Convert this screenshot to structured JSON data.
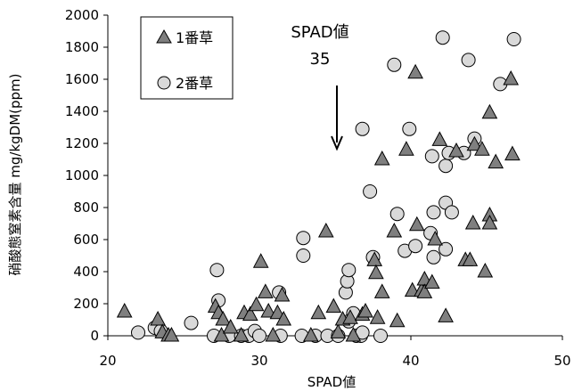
{
  "chart_data": {
    "type": "scatter",
    "xlabel": "SPAD値",
    "ylabel": "硝酸態窒素含量 mg/kgDM(ppm)",
    "xlim": [
      20,
      50
    ],
    "ylim": [
      0,
      2000
    ],
    "x_ticks": [
      "20",
      "30",
      "40",
      "50"
    ],
    "y_ticks": [
      "0",
      "200",
      "400",
      "600",
      "800",
      "1000",
      "1200",
      "1400",
      "1600",
      "1800",
      "2000"
    ],
    "grid": false,
    "legend_position": "top-left",
    "annotation": {
      "line1": "SPAD値",
      "line2": "35",
      "x": 35
    },
    "colors": {
      "series1": "#7f7f7f",
      "series2": "#d9d9d9",
      "stroke": "#000000"
    },
    "series": [
      {
        "name": "1番草",
        "marker": "triangle",
        "points": [
          [
            21.1,
            150
          ],
          [
            23.3,
            100
          ],
          [
            23.6,
            20
          ],
          [
            24.0,
            0
          ],
          [
            24.2,
            0
          ],
          [
            27.1,
            180
          ],
          [
            27.3,
            140
          ],
          [
            27.5,
            0
          ],
          [
            27.6,
            100
          ],
          [
            28.1,
            50
          ],
          [
            28.8,
            0
          ],
          [
            29.0,
            140
          ],
          [
            29.4,
            130
          ],
          [
            29.8,
            190
          ],
          [
            30.1,
            460
          ],
          [
            30.4,
            270
          ],
          [
            30.6,
            150
          ],
          [
            30.9,
            0
          ],
          [
            31.2,
            140
          ],
          [
            31.5,
            250
          ],
          [
            31.6,
            100
          ],
          [
            33.4,
            0
          ],
          [
            33.9,
            140
          ],
          [
            34.4,
            650
          ],
          [
            34.9,
            180
          ],
          [
            35.2,
            20
          ],
          [
            35.5,
            100
          ],
          [
            36.0,
            110
          ],
          [
            36.2,
            0
          ],
          [
            36.8,
            130
          ],
          [
            37.0,
            150
          ],
          [
            37.6,
            470
          ],
          [
            37.7,
            390
          ],
          [
            37.8,
            110
          ],
          [
            38.1,
            1100
          ],
          [
            38.1,
            270
          ],
          [
            38.9,
            650
          ],
          [
            39.1,
            90
          ],
          [
            39.7,
            1160
          ],
          [
            40.1,
            280
          ],
          [
            40.3,
            1640
          ],
          [
            40.4,
            690
          ],
          [
            40.7,
            280
          ],
          [
            40.9,
            350
          ],
          [
            40.9,
            270
          ],
          [
            41.4,
            330
          ],
          [
            41.6,
            600
          ],
          [
            41.9,
            1220
          ],
          [
            42.3,
            120
          ],
          [
            43.0,
            1150
          ],
          [
            43.6,
            470
          ],
          [
            43.9,
            470
          ],
          [
            44.1,
            700
          ],
          [
            44.2,
            1190
          ],
          [
            44.7,
            1160
          ],
          [
            44.9,
            400
          ],
          [
            45.2,
            750
          ],
          [
            45.2,
            700
          ],
          [
            45.2,
            1390
          ],
          [
            45.6,
            1080
          ],
          [
            46.6,
            1600
          ],
          [
            46.7,
            1130
          ]
        ]
      },
      {
        "name": "2番草",
        "marker": "circle",
        "points": [
          [
            22.0,
            20
          ],
          [
            23.1,
            50
          ],
          [
            23.5,
            30
          ],
          [
            25.5,
            80
          ],
          [
            27.0,
            0
          ],
          [
            27.2,
            410
          ],
          [
            27.3,
            220
          ],
          [
            28.0,
            0
          ],
          [
            28.8,
            0
          ],
          [
            29.3,
            0
          ],
          [
            29.7,
            30
          ],
          [
            30.0,
            0
          ],
          [
            31.3,
            270
          ],
          [
            31.4,
            0
          ],
          [
            32.8,
            0
          ],
          [
            32.9,
            500
          ],
          [
            32.9,
            610
          ],
          [
            33.7,
            0
          ],
          [
            34.5,
            0
          ],
          [
            35.2,
            0
          ],
          [
            35.7,
            270
          ],
          [
            35.8,
            340
          ],
          [
            35.9,
            410
          ],
          [
            35.9,
            90
          ],
          [
            36.2,
            140
          ],
          [
            36.4,
            0
          ],
          [
            36.7,
            0
          ],
          [
            36.8,
            20
          ],
          [
            36.8,
            1290
          ],
          [
            37.3,
            900
          ],
          [
            37.5,
            490
          ],
          [
            38.0,
            0
          ],
          [
            38.9,
            1690
          ],
          [
            39.1,
            760
          ],
          [
            39.6,
            530
          ],
          [
            39.9,
            1290
          ],
          [
            40.3,
            560
          ],
          [
            41.3,
            640
          ],
          [
            41.4,
            1120
          ],
          [
            41.5,
            770
          ],
          [
            41.5,
            490
          ],
          [
            42.1,
            1860
          ],
          [
            42.3,
            540
          ],
          [
            42.3,
            830
          ],
          [
            42.3,
            1060
          ],
          [
            42.5,
            1140
          ],
          [
            42.7,
            770
          ],
          [
            43.5,
            1140
          ],
          [
            43.8,
            1720
          ],
          [
            44.2,
            1230
          ],
          [
            45.9,
            1570
          ],
          [
            46.8,
            1850
          ]
        ]
      }
    ]
  }
}
